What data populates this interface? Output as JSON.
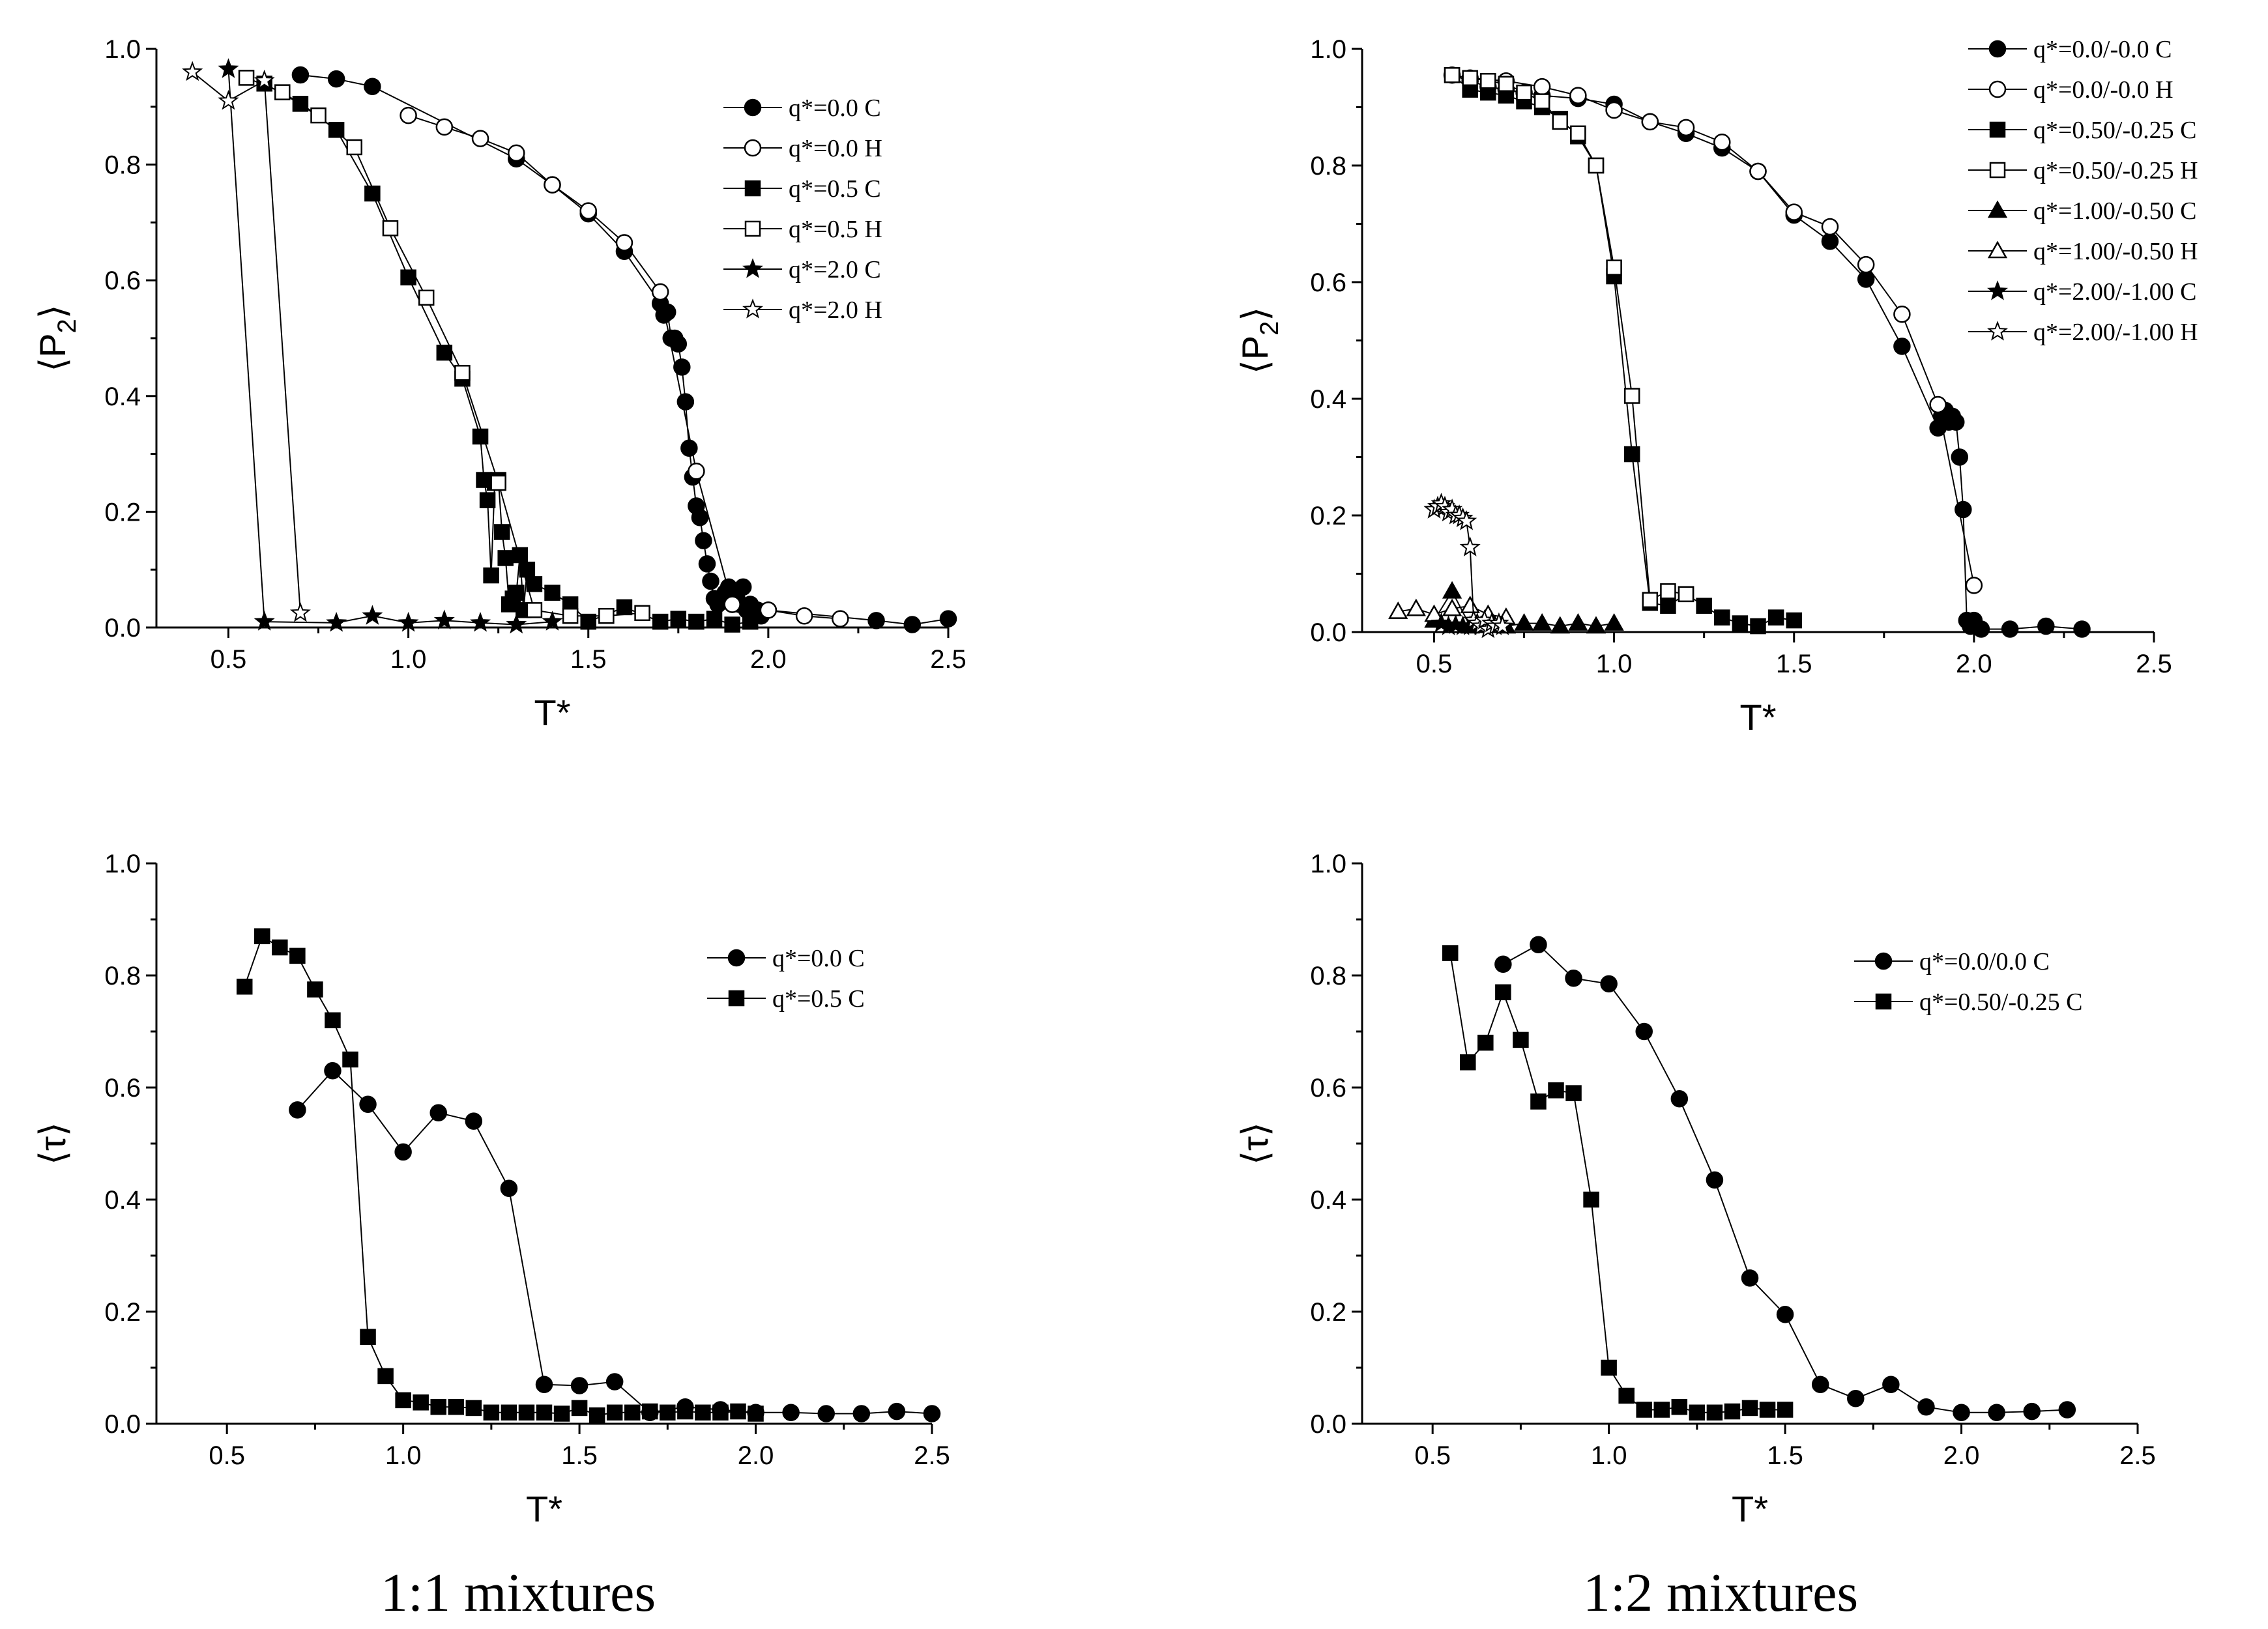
{
  "captions": {
    "left": "1:1 mixtures",
    "right": "1:2 mixtures"
  },
  "colors": {
    "ink": "#000000",
    "paper": "#ffffff"
  },
  "chart_data": [
    {
      "id": "p2_11",
      "type": "scatter",
      "xlabel": "T*",
      "ylabel_main": "P",
      "ylabel_sub": "2",
      "xlim": [
        0.3,
        2.5
      ],
      "ylim": [
        0.0,
        1.0
      ],
      "xticks": [
        "0.5",
        "1.0",
        "1.5",
        "2.0",
        "2.5"
      ],
      "yticks": [
        "0.0",
        "0.2",
        "0.4",
        "0.6",
        "0.8",
        "1.0"
      ],
      "legend_position": "top-right",
      "series": [
        {
          "name": "q*=0.0 C",
          "marker": "circle",
          "filled": true,
          "x": [
            0.7,
            0.8,
            0.9,
            1.3,
            1.4,
            1.5,
            1.6,
            1.7,
            1.71,
            1.72,
            1.73,
            1.74,
            1.75,
            1.76,
            1.77,
            1.78,
            1.79,
            1.8,
            1.81,
            1.82,
            1.83,
            1.84,
            1.85,
            1.86,
            1.87,
            1.88,
            1.89,
            1.9,
            1.91,
            1.92,
            1.93,
            1.94,
            1.95,
            1.96,
            1.97,
            1.98,
            2.0,
            2.3,
            2.4,
            2.5
          ],
          "y": [
            0.955,
            0.948,
            0.935,
            0.81,
            0.765,
            0.715,
            0.65,
            0.56,
            0.54,
            0.545,
            0.5,
            0.5,
            0.49,
            0.45,
            0.39,
            0.31,
            0.26,
            0.21,
            0.19,
            0.15,
            0.11,
            0.08,
            0.05,
            0.04,
            0.05,
            0.06,
            0.07,
            0.04,
            0.05,
            0.04,
            0.07,
            0.03,
            0.04,
            0.02,
            0.03,
            0.02,
            0.03,
            0.012,
            0.005,
            0.015
          ]
        },
        {
          "name": "q*=0.0 H",
          "marker": "circle",
          "filled": false,
          "x": [
            1.0,
            1.1,
            1.2,
            1.3,
            1.4,
            1.5,
            1.6,
            1.7,
            1.8,
            1.9,
            2.0,
            2.1,
            2.2
          ],
          "y": [
            0.885,
            0.865,
            0.845,
            0.82,
            0.765,
            0.72,
            0.665,
            0.58,
            0.27,
            0.04,
            0.03,
            0.02,
            0.015
          ]
        },
        {
          "name": "q*=0.5 C",
          "marker": "square",
          "filled": true,
          "x": [
            0.6,
            0.7,
            0.8,
            0.9,
            1.0,
            1.1,
            1.15,
            1.2,
            1.21,
            1.22,
            1.23,
            1.24,
            1.25,
            1.26,
            1.27,
            1.28,
            1.29,
            1.3,
            1.31,
            1.32,
            1.33,
            1.35,
            1.4,
            1.45,
            1.5,
            1.6,
            1.7,
            1.75,
            1.8,
            1.85,
            1.9,
            1.95
          ],
          "y": [
            0.94,
            0.905,
            0.86,
            0.75,
            0.605,
            0.475,
            0.43,
            0.33,
            0.255,
            0.22,
            0.09,
            0.25,
            0.255,
            0.165,
            0.12,
            0.04,
            0.05,
            0.06,
            0.125,
            0.03,
            0.1,
            0.075,
            0.06,
            0.04,
            0.01,
            0.035,
            0.01,
            0.015,
            0.01,
            0.015,
            0.005,
            0.01
          ]
        },
        {
          "name": "q*=0.5 H",
          "marker": "square",
          "filled": false,
          "x": [
            0.55,
            0.65,
            0.75,
            0.85,
            0.95,
            1.05,
            1.15,
            1.25,
            1.35,
            1.45,
            1.55,
            1.65
          ],
          "y": [
            0.95,
            0.925,
            0.885,
            0.83,
            0.69,
            0.57,
            0.44,
            0.25,
            0.03,
            0.02,
            0.02,
            0.025
          ]
        },
        {
          "name": "q*=2.0 C",
          "marker": "star",
          "filled": true,
          "x": [
            0.5,
            0.6,
            0.8,
            0.9,
            1.0,
            1.1,
            1.2,
            1.3,
            1.4
          ],
          "y": [
            0.965,
            0.01,
            0.008,
            0.02,
            0.008,
            0.012,
            0.008,
            0.005,
            0.01
          ]
        },
        {
          "name": "q*=2.0 H",
          "marker": "star",
          "filled": false,
          "x": [
            0.4,
            0.5,
            0.6,
            0.7
          ],
          "y": [
            0.96,
            0.91,
            0.945,
            0.025
          ]
        }
      ]
    },
    {
      "id": "p2_12",
      "type": "scatter",
      "xlabel": "T*",
      "ylabel_main": "P",
      "ylabel_sub": "2",
      "xlim": [
        0.3,
        2.5
      ],
      "ylim": [
        0.0,
        1.0
      ],
      "xticks": [
        "0.5",
        "1.0",
        "1.5",
        "2.0",
        "2.5"
      ],
      "yticks": [
        "0.0",
        "0.2",
        "0.4",
        "0.6",
        "0.8",
        "1.0"
      ],
      "legend_position": "top-right",
      "series": [
        {
          "name": "q*=0.0/-0.0 C",
          "marker": "circle",
          "filled": true,
          "x": [
            0.55,
            0.6,
            0.65,
            0.7,
            0.75,
            0.8,
            0.9,
            1.0,
            1.1,
            1.2,
            1.3,
            1.4,
            1.5,
            1.6,
            1.7,
            1.8,
            1.9,
            1.91,
            1.92,
            1.93,
            1.94,
            1.95,
            1.96,
            1.97,
            1.98,
            1.99,
            2.0,
            2.02,
            2.1,
            2.2,
            2.3
          ],
          "y": [
            0.955,
            0.945,
            0.935,
            0.93,
            0.925,
            0.92,
            0.915,
            0.905,
            0.875,
            0.855,
            0.83,
            0.79,
            0.715,
            0.67,
            0.605,
            0.49,
            0.35,
            0.37,
            0.38,
            0.36,
            0.37,
            0.36,
            0.3,
            0.21,
            0.02,
            0.01,
            0.02,
            0.005,
            0.005,
            0.01,
            0.005
          ]
        },
        {
          "name": "q*=0.0/-0.0 H",
          "marker": "circle",
          "filled": false,
          "x": [
            0.6,
            0.7,
            0.8,
            0.9,
            1.0,
            1.1,
            1.2,
            1.3,
            1.4,
            1.5,
            1.6,
            1.7,
            1.8,
            1.9,
            2.0
          ],
          "y": [
            0.95,
            0.945,
            0.935,
            0.92,
            0.895,
            0.875,
            0.865,
            0.84,
            0.79,
            0.72,
            0.695,
            0.63,
            0.545,
            0.39,
            0.08
          ]
        },
        {
          "name": "q*=0.50/-0.25 C",
          "marker": "square",
          "filled": true,
          "x": [
            0.55,
            0.6,
            0.65,
            0.7,
            0.75,
            0.8,
            0.85,
            0.9,
            0.95,
            1.0,
            1.05,
            1.1,
            1.15,
            1.2,
            1.25,
            1.3,
            1.35,
            1.4,
            1.45,
            1.5
          ],
          "y": [
            0.955,
            0.93,
            0.925,
            0.92,
            0.91,
            0.9,
            0.88,
            0.85,
            0.8,
            0.61,
            0.305,
            0.05,
            0.045,
            0.065,
            0.045,
            0.025,
            0.015,
            0.01,
            0.025,
            0.02
          ]
        },
        {
          "name": "q*=0.50/-0.25 H",
          "marker": "square",
          "filled": false,
          "x": [
            0.55,
            0.6,
            0.65,
            0.7,
            0.75,
            0.8,
            0.85,
            0.9,
            0.95,
            1.0,
            1.05,
            1.1,
            1.15,
            1.2
          ],
          "y": [
            0.955,
            0.95,
            0.945,
            0.94,
            0.925,
            0.91,
            0.875,
            0.855,
            0.8,
            0.625,
            0.405,
            0.055,
            0.07,
            0.065
          ]
        },
        {
          "name": "q*=1.00/-0.50 C",
          "marker": "triangle",
          "filled": true,
          "x": [
            0.5,
            0.55,
            0.6,
            0.65,
            0.7,
            0.75,
            0.8,
            0.85,
            0.9,
            0.95,
            1.0
          ],
          "y": [
            0.02,
            0.07,
            0.01,
            0.02,
            0.01,
            0.015,
            0.015,
            0.01,
            0.015,
            0.01,
            0.015
          ]
        },
        {
          "name": "q*=1.00/-0.50 H",
          "marker": "triangle",
          "filled": false,
          "x": [
            0.4,
            0.45,
            0.5,
            0.55,
            0.6,
            0.65,
            0.7
          ],
          "y": [
            0.035,
            0.04,
            0.03,
            0.04,
            0.045,
            0.03,
            0.025
          ]
        },
        {
          "name": "q*=2.00/-1.00 C",
          "marker": "star",
          "filled": true,
          "x": [
            0.52,
            0.54,
            0.56,
            0.58,
            0.6
          ],
          "y": [
            0.015,
            0.01,
            0.012,
            0.01,
            0.01
          ]
        },
        {
          "name": "q*=2.00/-1.00 H",
          "marker": "star",
          "filled": false,
          "x": [
            0.5,
            0.51,
            0.52,
            0.53,
            0.54,
            0.55,
            0.56,
            0.57,
            0.58,
            0.59,
            0.6,
            0.61,
            0.62,
            0.63,
            0.64,
            0.65,
            0.66,
            0.67,
            0.68,
            0.69
          ],
          "y": [
            0.21,
            0.215,
            0.22,
            0.215,
            0.205,
            0.21,
            0.2,
            0.2,
            0.195,
            0.19,
            0.145,
            0.02,
            0.015,
            0.01,
            0.02,
            0.005,
            0.015,
            0.01,
            0.015,
            0.01
          ]
        }
      ]
    },
    {
      "id": "tau_11",
      "type": "scatter",
      "xlabel": "T*",
      "ylabel_main": "τ",
      "ylabel_sub": "",
      "xlim": [
        0.3,
        2.5
      ],
      "ylim": [
        0.0,
        1.0
      ],
      "xticks": [
        "0.5",
        "1.0",
        "1.5",
        "2.0",
        "2.5"
      ],
      "yticks": [
        "0.0",
        "0.2",
        "0.4",
        "0.6",
        "0.8",
        "1.0"
      ],
      "legend_position": "top-right",
      "series": [
        {
          "name": "q*=0.0 C",
          "marker": "circle",
          "filled": true,
          "x": [
            0.7,
            0.8,
            0.9,
            1.0,
            1.1,
            1.2,
            1.3,
            1.4,
            1.5,
            1.6,
            1.7,
            1.8,
            1.9,
            2.0,
            2.1,
            2.2,
            2.3,
            2.4,
            2.5
          ],
          "y": [
            0.56,
            0.63,
            0.57,
            0.485,
            0.555,
            0.54,
            0.42,
            0.07,
            0.068,
            0.075,
            0.02,
            0.03,
            0.025,
            0.02,
            0.02,
            0.018,
            0.018,
            0.022,
            0.018
          ]
        },
        {
          "name": "q*=0.5 C",
          "marker": "square",
          "filled": true,
          "x": [
            0.55,
            0.6,
            0.65,
            0.7,
            0.75,
            0.8,
            0.85,
            0.9,
            0.95,
            1.0,
            1.05,
            1.1,
            1.15,
            1.2,
            1.25,
            1.3,
            1.35,
            1.4,
            1.45,
            1.5,
            1.55,
            1.6,
            1.65,
            1.7,
            1.75,
            1.8,
            1.85,
            1.9,
            1.95,
            2.0
          ],
          "y": [
            0.78,
            0.87,
            0.85,
            0.835,
            0.775,
            0.72,
            0.65,
            0.155,
            0.085,
            0.042,
            0.038,
            0.03,
            0.03,
            0.028,
            0.02,
            0.02,
            0.02,
            0.02,
            0.018,
            0.028,
            0.015,
            0.02,
            0.02,
            0.022,
            0.02,
            0.022,
            0.02,
            0.02,
            0.022,
            0.018
          ]
        }
      ]
    },
    {
      "id": "tau_12",
      "type": "scatter",
      "xlabel": "T*",
      "ylabel_main": "τ",
      "ylabel_sub": "",
      "xlim": [
        0.3,
        2.5
      ],
      "ylim": [
        0.0,
        1.0
      ],
      "xticks": [
        "0.5",
        "1.0",
        "1.5",
        "2.0",
        "2.5"
      ],
      "yticks": [
        "0.0",
        "0.2",
        "0.4",
        "0.6",
        "0.8",
        "1.0"
      ],
      "legend_position": "top-right",
      "series": [
        {
          "name": "q*=0.0/0.0 C",
          "marker": "circle",
          "filled": true,
          "x": [
            0.7,
            0.8,
            0.9,
            1.0,
            1.1,
            1.2,
            1.3,
            1.4,
            1.5,
            1.6,
            1.7,
            1.8,
            1.9,
            2.0,
            2.1,
            2.2,
            2.3
          ],
          "y": [
            0.82,
            0.855,
            0.795,
            0.785,
            0.7,
            0.58,
            0.435,
            0.26,
            0.195,
            0.07,
            0.045,
            0.07,
            0.03,
            0.02,
            0.02,
            0.022,
            0.025
          ]
        },
        {
          "name": "q*=0.50/-0.25 C",
          "marker": "square",
          "filled": true,
          "x": [
            0.55,
            0.6,
            0.65,
            0.7,
            0.75,
            0.8,
            0.85,
            0.9,
            0.95,
            1.0,
            1.05,
            1.1,
            1.15,
            1.2,
            1.25,
            1.3,
            1.35,
            1.4,
            1.45,
            1.5
          ],
          "y": [
            0.84,
            0.645,
            0.68,
            0.77,
            0.685,
            0.575,
            0.595,
            0.59,
            0.4,
            0.1,
            0.05,
            0.025,
            0.025,
            0.03,
            0.02,
            0.02,
            0.022,
            0.028,
            0.025,
            0.025
          ]
        }
      ]
    }
  ]
}
